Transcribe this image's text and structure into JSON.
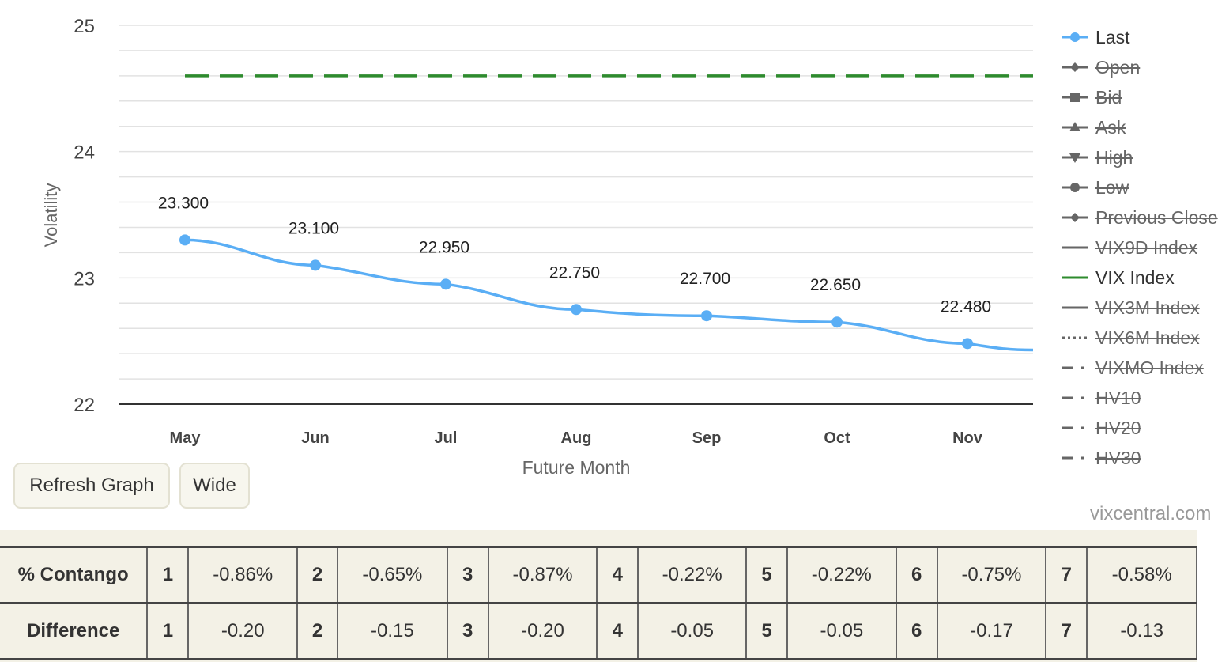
{
  "chart_data": {
    "type": "line",
    "xlabel": "Future Month",
    "ylabel": "Volatility",
    "categories": [
      "May",
      "Jun",
      "Jul",
      "Aug",
      "Sep",
      "Oct",
      "Nov"
    ],
    "ylim": [
      22,
      25
    ],
    "yticks": [
      22,
      23,
      24,
      25
    ],
    "grid": true,
    "legend_placement": "right",
    "series": [
      {
        "name": "Last",
        "color": "#5aaef5",
        "values": [
          23.3,
          23.1,
          22.95,
          22.75,
          22.7,
          22.65,
          22.48
        ],
        "labels": [
          "23.300",
          "23.100",
          "22.950",
          "22.750",
          "22.700",
          "22.650",
          "22.480"
        ]
      },
      {
        "name": "VIX Index",
        "color": "#2e8b2e",
        "style": "dashed",
        "value": 24.6
      }
    ]
  },
  "legend": [
    {
      "label": "Last",
      "marker": "circle",
      "color": "#5aaef5",
      "visible": true
    },
    {
      "label": "Open",
      "marker": "diamond",
      "visible": false
    },
    {
      "label": "Bid",
      "marker": "square",
      "visible": false
    },
    {
      "label": "Ask",
      "marker": "triangle",
      "visible": false
    },
    {
      "label": "High",
      "marker": "triangle-down",
      "visible": false
    },
    {
      "label": "Low",
      "marker": "circle",
      "visible": false
    },
    {
      "label": "Previous Close",
      "marker": "diamond",
      "visible": false
    },
    {
      "label": "VIX9D Index",
      "marker": "line",
      "visible": false
    },
    {
      "label": "VIX Index",
      "marker": "line",
      "color": "#2e8b2e",
      "visible": true
    },
    {
      "label": "VIX3M Index",
      "marker": "line",
      "visible": false
    },
    {
      "label": "VIX6M Index",
      "marker": "dotted",
      "visible": false
    },
    {
      "label": "VIXMO Index",
      "marker": "dashdot",
      "visible": false
    },
    {
      "label": "HV10",
      "marker": "dashdot",
      "visible": false
    },
    {
      "label": "HV20",
      "marker": "dashdot",
      "visible": false
    },
    {
      "label": "HV30",
      "marker": "dashdot",
      "visible": false
    }
  ],
  "buttons": {
    "refresh": "Refresh Graph",
    "wide": "Wide"
  },
  "credit": "vixcentral.com",
  "table": {
    "rows": [
      {
        "label": "% Contango",
        "cells": [
          [
            "1",
            "-0.86%"
          ],
          [
            "2",
            "-0.65%"
          ],
          [
            "3",
            "-0.87%"
          ],
          [
            "4",
            "-0.22%"
          ],
          [
            "5",
            "-0.22%"
          ],
          [
            "6",
            "-0.75%"
          ],
          [
            "7",
            "-0.58%"
          ]
        ]
      },
      {
        "label": "Difference",
        "cells": [
          [
            "1",
            "-0.20"
          ],
          [
            "2",
            "-0.15"
          ],
          [
            "3",
            "-0.20"
          ],
          [
            "4",
            "-0.05"
          ],
          [
            "5",
            "-0.05"
          ],
          [
            "6",
            "-0.17"
          ],
          [
            "7",
            "-0.13"
          ]
        ]
      }
    ]
  }
}
